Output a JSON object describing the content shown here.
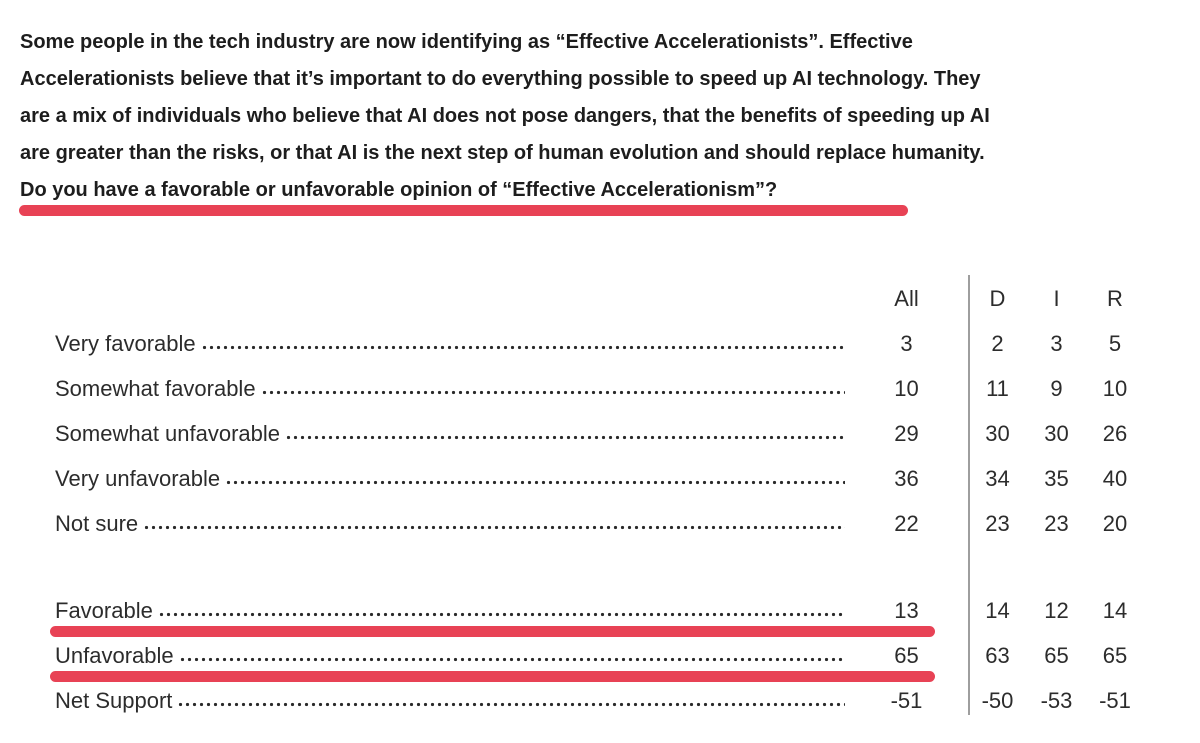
{
  "question": {
    "lines": [
      "Some people in the tech industry are now identifying as “Effective Accelerationists”. Effective",
      "Accelerationists believe that it’s important to do everything possible to speed up AI technology. They",
      "are a mix of individuals who believe that AI does not pose dangers, that the benefits of speeding up AI",
      "are greater than the risks, or that AI is the next step of human evolution and should replace humanity.",
      "Do you have a favorable or unfavorable opinion of “Effective Accelerationism”?"
    ]
  },
  "table": {
    "columns": {
      "all": "All",
      "d": "D",
      "i": "I",
      "r": "R"
    },
    "response_rows": [
      {
        "label": "Very favorable",
        "all": "3",
        "d": "2",
        "i": "3",
        "r": "5"
      },
      {
        "label": "Somewhat favorable",
        "all": "10",
        "d": "11",
        "i": "9",
        "r": "10"
      },
      {
        "label": "Somewhat unfavorable",
        "all": "29",
        "d": "30",
        "i": "30",
        "r": "26"
      },
      {
        "label": "Very unfavorable",
        "all": "36",
        "d": "34",
        "i": "35",
        "r": "40"
      },
      {
        "label": "Not sure",
        "all": "22",
        "d": "23",
        "i": "23",
        "r": "20"
      }
    ],
    "summary_rows": [
      {
        "label": "Favorable",
        "all": "13",
        "d": "14",
        "i": "12",
        "r": "14",
        "underline": true
      },
      {
        "label": "Unfavorable",
        "all": "65",
        "d": "63",
        "i": "65",
        "r": "65",
        "underline": true
      },
      {
        "label": "Net Support",
        "all": "-51",
        "d": "-50",
        "i": "-53",
        "r": "-51"
      }
    ]
  },
  "colors": {
    "highlight_red": "#e84255",
    "divider_gray": "#9e9e9e",
    "question_text": "#1d1d1d",
    "table_text": "#2c2c2c"
  }
}
